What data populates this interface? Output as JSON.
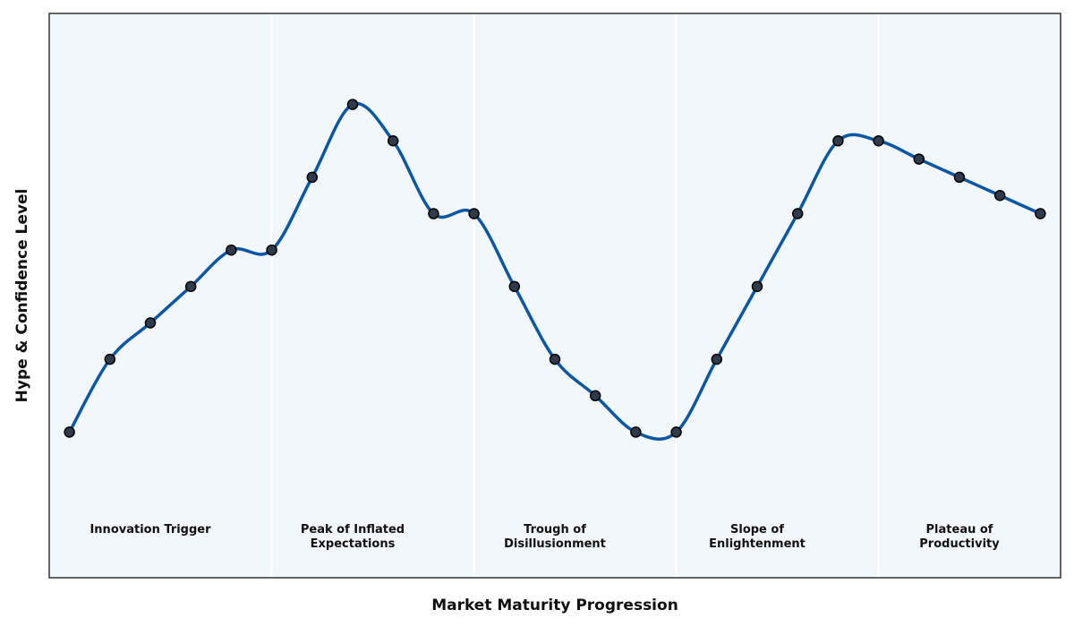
{
  "chart_data": {
    "type": "line",
    "title": "",
    "xlabel": "Market Maturity Progression",
    "ylabel": "Hype & Confidence Level",
    "x": [
      0,
      1,
      2,
      3,
      4,
      5,
      6,
      7,
      8,
      9,
      10,
      11,
      12,
      13,
      14,
      15,
      16,
      17,
      18,
      19,
      20,
      21,
      22,
      23,
      24
    ],
    "series": [
      {
        "values": [
          1.0,
          3.0,
          4.0,
          5.0,
          6.0,
          6.0,
          8.0,
          10.0,
          9.0,
          7.0,
          7.0,
          5.0,
          3.0,
          2.0,
          1.0,
          1.0,
          3.0,
          5.0,
          7.0,
          9.0,
          9.0,
          8.5,
          8.0,
          7.5,
          7.0
        ]
      }
    ],
    "xlim": [
      -0.5,
      24.5
    ],
    "ylim": [
      -3.0,
      12.5
    ],
    "phases": [
      {
        "lines": [
          "Innovation Trigger"
        ],
        "start": -0.5,
        "end": 5.0,
        "center": 2.0
      },
      {
        "lines": [
          "Peak of Inflated",
          "Expectations"
        ],
        "start": 5.0,
        "end": 10.0,
        "center": 7.0
      },
      {
        "lines": [
          "Trough of",
          "Disillusionment"
        ],
        "start": 10.0,
        "end": 15.0,
        "center": 12.0
      },
      {
        "lines": [
          "Slope of",
          "Enlightenment"
        ],
        "start": 15.0,
        "end": 20.0,
        "center": 17.0
      },
      {
        "lines": [
          "Plateau of",
          "Productivity"
        ],
        "start": 20.0,
        "end": 24.5,
        "center": 22.0
      }
    ],
    "grid": false,
    "legend": "none",
    "colors": {
      "line": "#0b57a4",
      "marker_fill": "#2f3a4a",
      "marker_edge": "#000000",
      "plot_background": "#f2f7fc",
      "phase_divider": "#ffffff",
      "frame": "#333333"
    }
  }
}
